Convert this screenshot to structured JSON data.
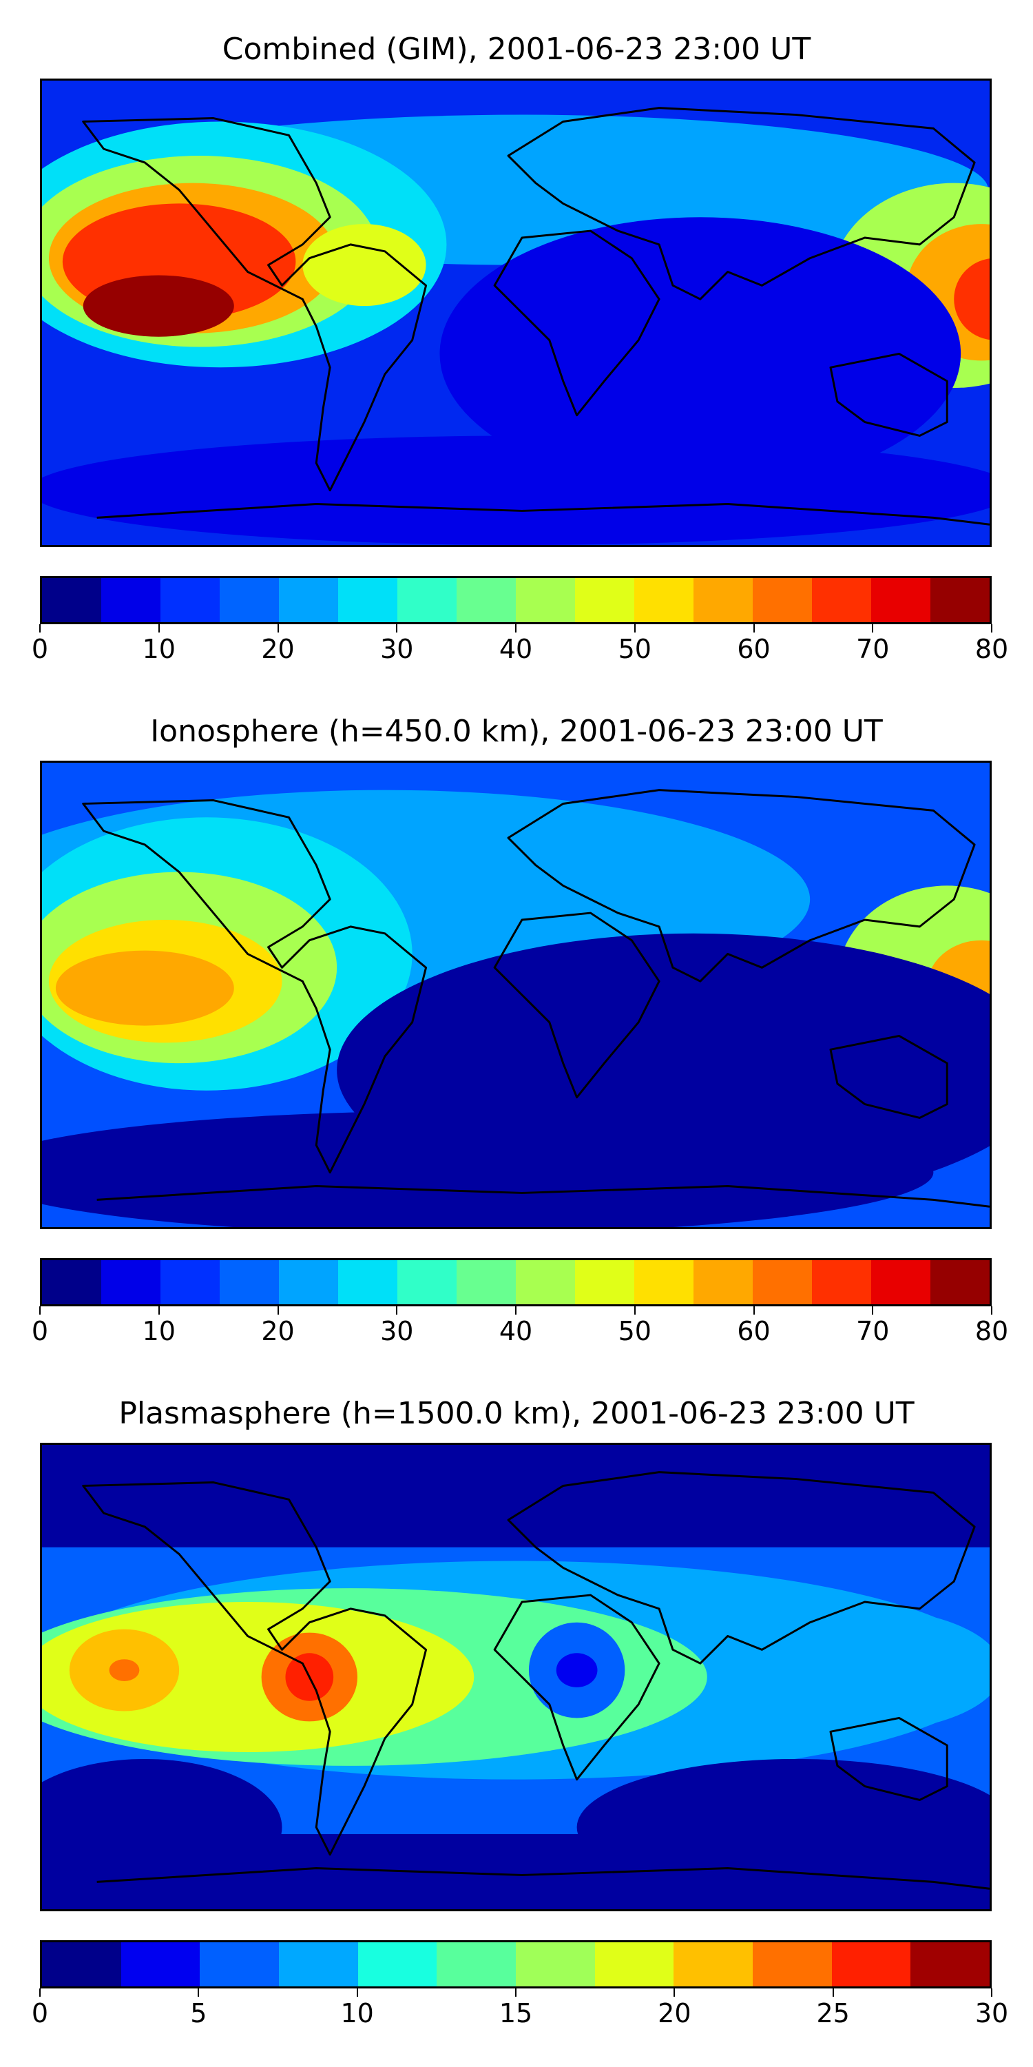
{
  "panels": [
    {
      "title": "Combined (GIM), 2001-06-23 23:00 UT",
      "colorbar": {
        "ticks": [
          "0",
          "10",
          "20",
          "30",
          "40",
          "50",
          "60",
          "70",
          "80"
        ],
        "range": [
          0,
          80
        ],
        "colors": [
          "#00008a",
          "#0000e8",
          "#0030ff",
          "#0064ff",
          "#00a4ff",
          "#00e0f8",
          "#30ffc8",
          "#68ff90",
          "#a8ff50",
          "#e0ff18",
          "#ffe000",
          "#ffa800",
          "#ff7000",
          "#ff3000",
          "#e80000",
          "#960000"
        ]
      },
      "background": "#0028f0"
    },
    {
      "title": "Ionosphere  (h=450.0 km), 2001-06-23 23:00 UT",
      "colorbar": {
        "ticks": [
          "0",
          "10",
          "20",
          "30",
          "40",
          "50",
          "60",
          "70",
          "80"
        ],
        "range": [
          0,
          80
        ],
        "colors": [
          "#00008a",
          "#0000e8",
          "#0030ff",
          "#0064ff",
          "#00a4ff",
          "#00e0f8",
          "#30ffc8",
          "#68ff90",
          "#a8ff50",
          "#e0ff18",
          "#ffe000",
          "#ffa800",
          "#ff7000",
          "#ff3000",
          "#e80000",
          "#960000"
        ]
      },
      "background": "#0050ff"
    },
    {
      "title": "Plasmasphere (h=1500.0 km), 2001-06-23 23:00 UT",
      "colorbar": {
        "ticks": [
          "0",
          "5",
          "10",
          "15",
          "20",
          "25",
          "30"
        ],
        "range": [
          0,
          30
        ],
        "colors": [
          "#00008a",
          "#0000f0",
          "#0060ff",
          "#00a8ff",
          "#18ffe0",
          "#58ff9c",
          "#a0ff58",
          "#e0ff18",
          "#ffc000",
          "#ff7000",
          "#ff2000",
          "#a00000"
        ]
      },
      "background": "#0000a0"
    }
  ]
}
